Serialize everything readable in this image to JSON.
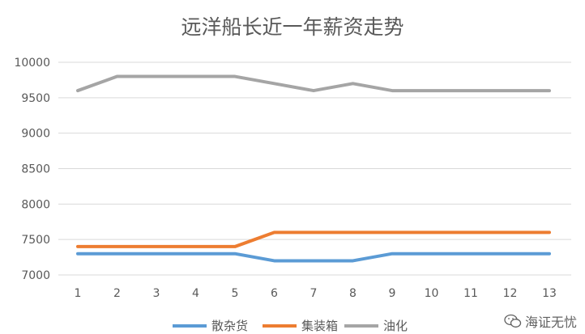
{
  "chart_data": {
    "type": "line",
    "title": "远洋船长近一年薪资走势",
    "xlabel": "",
    "ylabel": "",
    "categories": [
      "1",
      "2",
      "3",
      "4",
      "5",
      "6",
      "7",
      "8",
      "9",
      "10",
      "11",
      "12",
      "13"
    ],
    "ylim": [
      7000,
      10000
    ],
    "yticks": [
      7000,
      7500,
      8000,
      8500,
      9000,
      9500,
      10000
    ],
    "grid": true,
    "legend_position": "bottom",
    "series": [
      {
        "name": "散杂货",
        "color": "#5B9BD5",
        "values": [
          7300,
          7300,
          7300,
          7300,
          7300,
          7200,
          7200,
          7200,
          7300,
          7300,
          7300,
          7300,
          7300
        ]
      },
      {
        "name": "集装箱",
        "color": "#ED7D31",
        "values": [
          7400,
          7400,
          7400,
          7400,
          7400,
          7600,
          7600,
          7600,
          7600,
          7600,
          7600,
          7600,
          7600
        ]
      },
      {
        "name": "油化",
        "color": "#A5A5A5",
        "values": [
          9600,
          9800,
          9800,
          9800,
          9800,
          9700,
          9600,
          9700,
          9600,
          9600,
          9600,
          9600,
          9600
        ]
      }
    ]
  },
  "watermark": {
    "text": "海证无忧",
    "icon": "wechat-icon"
  }
}
